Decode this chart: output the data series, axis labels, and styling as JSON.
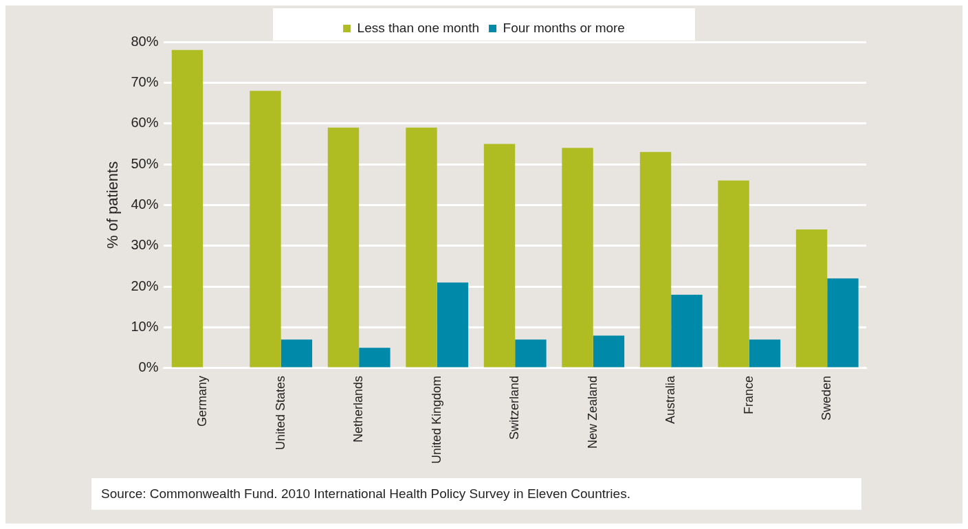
{
  "chart_data": {
    "type": "bar",
    "ylabel": "% of patients",
    "categories": [
      "Germany",
      "United States",
      "Netherlands",
      "United Kingdom",
      "Switzerland",
      "New Zealand",
      "Australia",
      "France",
      "Sweden"
    ],
    "series": [
      {
        "name": "Less than one month",
        "color": "#afbd22",
        "values": [
          78,
          68,
          59,
          59,
          55,
          54,
          53,
          46,
          34
        ]
      },
      {
        "name": "Four months or more",
        "color": "#0089a8",
        "values": [
          0,
          7,
          5,
          21,
          7,
          8,
          18,
          7,
          22
        ]
      }
    ],
    "ylim": [
      0,
      80
    ],
    "yticks": [
      {
        "value": 0,
        "label": "0%"
      },
      {
        "value": 10,
        "label": "10%"
      },
      {
        "value": 20,
        "label": "20%"
      },
      {
        "value": 30,
        "label": "30%"
      },
      {
        "value": 40,
        "label": "40%"
      },
      {
        "value": 50,
        "label": "50%"
      },
      {
        "value": 60,
        "label": "60%"
      },
      {
        "value": 70,
        "label": "70%"
      },
      {
        "value": 80,
        "label": "80%"
      }
    ],
    "grid": "y",
    "legend": "top",
    "annotations": [
      "Source: Commonwealth Fund. 2010 International Health Policy Survey in Eleven Countries."
    ]
  }
}
